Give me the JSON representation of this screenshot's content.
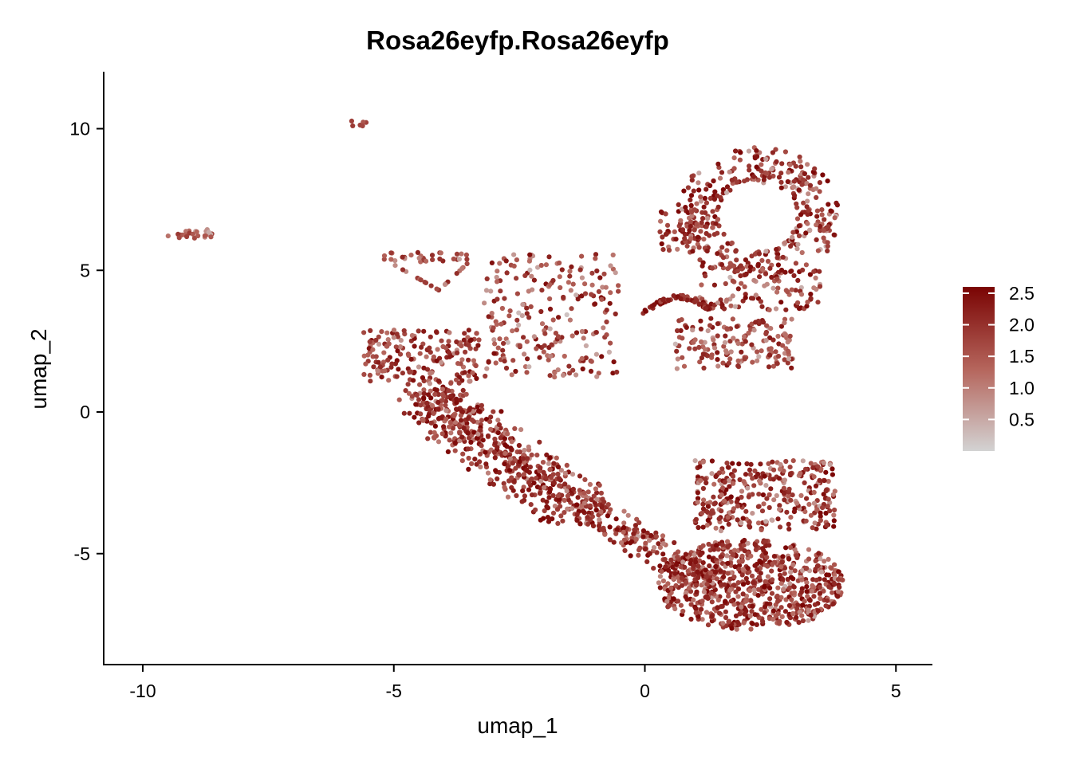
{
  "chart_data": {
    "type": "scatter",
    "title": "Rosa26eyfp.Rosa26eyfp",
    "xlabel": "umap_1",
    "ylabel": "umap_2",
    "xlim": [
      -10.75,
      5.75
    ],
    "ylim": [
      -8.9,
      12.0
    ],
    "xticks": [
      -10,
      -5,
      0,
      5
    ],
    "xtick_labels": [
      "-10",
      "-5",
      "0",
      "5"
    ],
    "yticks": [
      -5,
      0,
      5,
      10
    ],
    "ytick_labels": [
      "-5",
      "0",
      "5",
      "10"
    ],
    "grid": false,
    "legend_position": "right",
    "colorbar": {
      "min": 0.0,
      "max": 2.6,
      "low_color": "#d3d3d3",
      "mid_color": "#b5655c",
      "high_color": "#7a0403",
      "ticks": [
        0.5,
        1.0,
        1.5,
        2.0,
        2.5
      ],
      "tick_labels": [
        "0.5",
        "1.0",
        "1.5",
        "2.0",
        "2.5"
      ]
    },
    "clusters": [
      {
        "region": "isolated pair top",
        "x": [
          -5.9,
          -5.55
        ],
        "y": [
          10.05,
          10.3
        ],
        "n": 6,
        "expr": [
          0.9,
          2.0
        ]
      },
      {
        "region": "far-left strip",
        "x": [
          -9.5,
          -8.6
        ],
        "y": [
          6.1,
          6.5
        ],
        "n": 24,
        "expr": [
          0.3,
          2.0
        ]
      },
      {
        "region": "triangle top edge",
        "x": [
          -5.3,
          -3.5
        ],
        "y": [
          5.25,
          5.65
        ],
        "n": 50,
        "expr": [
          0.2,
          2.2
        ]
      },
      {
        "region": "upper right ring",
        "x": [
          0.8,
          3.7
        ],
        "y": [
          3.6,
          9.1
        ],
        "n": 520,
        "expr": [
          0.3,
          2.6
        ]
      },
      {
        "region": "arc",
        "x": [
          -0.1,
          1.4
        ],
        "y": [
          3.3,
          4.3
        ],
        "n": 55,
        "expr": [
          1.5,
          2.6
        ]
      },
      {
        "region": "left arm",
        "x": [
          -5.6,
          -3.3
        ],
        "y": [
          1.0,
          2.9
        ],
        "n": 180,
        "expr": [
          0.6,
          2.5
        ]
      },
      {
        "region": "central spine",
        "x": [
          -4.5,
          -1.3
        ],
        "y": [
          -3.8,
          0.8
        ],
        "n": 560,
        "expr": [
          0.6,
          2.6
        ]
      },
      {
        "region": "middle connectors",
        "x": [
          -3.2,
          -0.5
        ],
        "y": [
          1.2,
          5.6
        ],
        "n": 230,
        "expr": [
          0.1,
          2.5
        ]
      },
      {
        "region": "right middle blob",
        "x": [
          0.6,
          3.0
        ],
        "y": [
          1.5,
          3.3
        ],
        "n": 160,
        "expr": [
          0.2,
          2.4
        ]
      },
      {
        "region": "lower right mass",
        "x": [
          -1.1,
          4.3
        ],
        "y": [
          -7.9,
          -0.5
        ],
        "n": 1250,
        "expr": [
          0.4,
          2.6
        ]
      }
    ]
  }
}
